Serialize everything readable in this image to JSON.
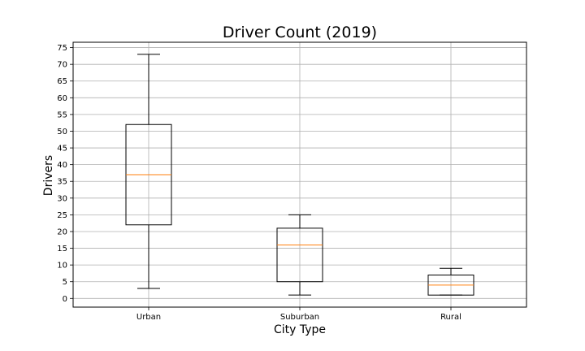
{
  "chart_data": {
    "type": "boxplot",
    "title": "Driver Count (2019)",
    "xlabel": "City Type",
    "ylabel": "Drivers",
    "ylim": [
      -2.6,
      76.6
    ],
    "yticks": [
      0,
      5,
      10,
      15,
      20,
      25,
      30,
      35,
      40,
      45,
      50,
      55,
      60,
      65,
      70,
      75
    ],
    "grid": true,
    "categories": [
      "Urban",
      "Suburban",
      "Rural"
    ],
    "boxes": [
      {
        "name": "Urban",
        "whisker_low": 3,
        "q1": 22,
        "median": 37,
        "q3": 52,
        "whisker_high": 73
      },
      {
        "name": "Suburban",
        "whisker_low": 1,
        "q1": 5,
        "median": 16,
        "q3": 21,
        "whisker_high": 25
      },
      {
        "name": "Rural",
        "whisker_low": 1,
        "q1": 1,
        "median": 4,
        "q3": 7,
        "whisker_high": 9
      }
    ],
    "colors": {
      "box": "#000000",
      "median": "#ff7f0e",
      "grid": "#b0b0b0"
    }
  }
}
